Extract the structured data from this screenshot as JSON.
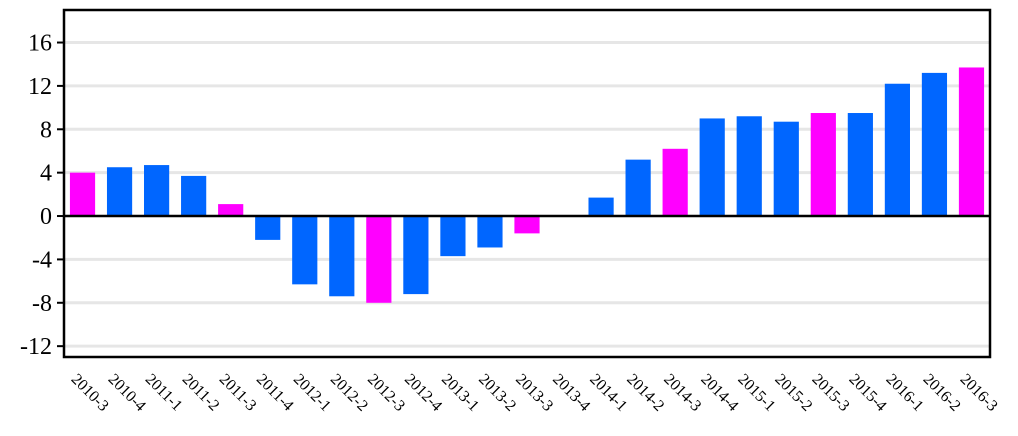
{
  "chart_data": {
    "type": "bar",
    "title": "",
    "xlabel": "",
    "ylabel": "",
    "ylim": [
      -13,
      19
    ],
    "yticks": [
      -12,
      -8,
      -4,
      0,
      4,
      8,
      12,
      16
    ],
    "ytick_labels": [
      "-12",
      "-8",
      "-4",
      "0",
      "4",
      "8",
      "12",
      "16"
    ],
    "grid": "horizontal",
    "colors": {
      "default": "#0066ff",
      "highlight": "#ff00ff"
    },
    "categories": [
      "2010-3",
      "2010-4",
      "2011-1",
      "2011-2",
      "2011-3",
      "2011-4",
      "2012-1",
      "2012-2",
      "2012-3",
      "2012-4",
      "2013-1",
      "2013-2",
      "2013-3",
      "2013-4",
      "2014-1",
      "2014-2",
      "2014-3",
      "2014-4",
      "2015-1",
      "2015-2",
      "2015-3",
      "2015-4",
      "2016-1",
      "2016-2",
      "2016-3"
    ],
    "values": [
      4.0,
      4.5,
      4.7,
      3.7,
      1.1,
      -2.2,
      -6.3,
      -7.4,
      -8.0,
      -7.2,
      -3.7,
      -2.9,
      -1.6,
      0,
      1.7,
      5.2,
      6.2,
      9.0,
      9.2,
      8.7,
      9.5,
      9.5,
      12.2,
      13.2,
      13.7
    ],
    "highlight": [
      true,
      false,
      false,
      false,
      true,
      false,
      false,
      false,
      true,
      false,
      false,
      false,
      true,
      false,
      false,
      false,
      true,
      false,
      false,
      false,
      true,
      false,
      false,
      false,
      true
    ]
  }
}
